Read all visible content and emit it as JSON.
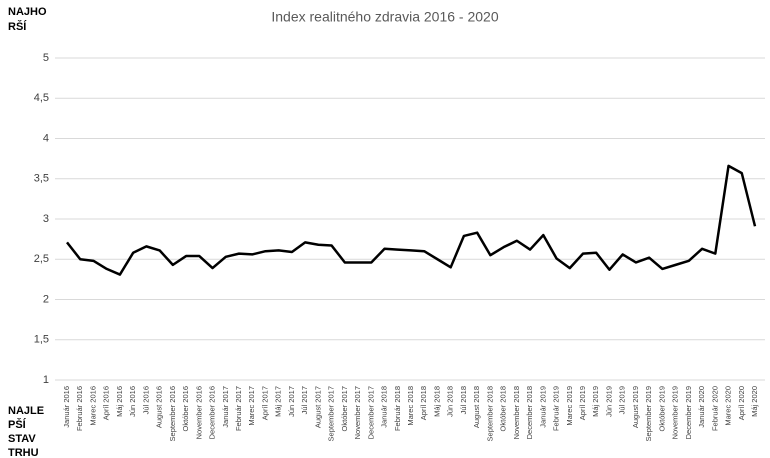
{
  "chart_data": {
    "type": "line",
    "title": "Index realitného zdravia 2016 - 2020",
    "top_label": [
      "NAJHO",
      "RŠÍ"
    ],
    "bottom_label": [
      "NAJLE",
      "PŠÍ",
      "STAV",
      "TRHU"
    ],
    "categories": [
      "Január 2016",
      "Február 2016",
      "Marec 2016",
      "Apríl 2016",
      "Máj 2016",
      "Jún 2016",
      "Júl 2016",
      "August 2016",
      "September 2016",
      "Október 2016",
      "November 2016",
      "December 2016",
      "Január 2017",
      "Február 2017",
      "Marec 2017",
      "Apríl 2017",
      "Máj 2017",
      "Jún 2017",
      "Júl 2017",
      "August 2017",
      "September 2017",
      "Október 2017",
      "November 2017",
      "December 2017",
      "Január 2018",
      "Február 2018",
      "Marec 2018",
      "Apríl 2018",
      "Máj 2018",
      "Jún 2018",
      "Júl 2018",
      "August 2018",
      "September 2018",
      "Október 2018",
      "November 2018",
      "December 2018",
      "Január 2019",
      "Február 2019",
      "Marec 2019",
      "Apríl 2019",
      "Máj 2019",
      "Jún 2019",
      "Júl 2019",
      "August 2019",
      "September 2019",
      "Október 2019",
      "November 2019",
      "December 2019",
      "Január 2020",
      "Február 2020",
      "Marec 2020",
      "Apríl 2020",
      "Máj 2020"
    ],
    "values": [
      2.71,
      2.5,
      2.48,
      2.38,
      2.31,
      2.58,
      2.66,
      2.61,
      2.43,
      2.54,
      2.54,
      2.39,
      2.53,
      2.57,
      2.56,
      2.6,
      2.61,
      2.59,
      2.71,
      2.68,
      2.67,
      2.46,
      2.46,
      2.46,
      2.63,
      2.62,
      2.61,
      2.6,
      2.5,
      2.4,
      2.79,
      2.83,
      2.55,
      2.65,
      2.73,
      2.62,
      2.8,
      2.51,
      2.39,
      2.57,
      2.58,
      2.37,
      2.56,
      2.46,
      2.52,
      2.38,
      2.43,
      2.48,
      2.63,
      2.57,
      3.66,
      3.57,
      2.91
    ],
    "color": "#000000",
    "ylim": [
      1,
      5
    ],
    "yticks": [
      1,
      {
        "value": 1.5,
        "label": "1,5"
      },
      2,
      {
        "value": 2.5,
        "label": "2,5"
      },
      3,
      {
        "value": 3.5,
        "label": "3,5"
      },
      4,
      {
        "value": 4.5,
        "label": "4,5"
      },
      5
    ],
    "grid": true
  }
}
